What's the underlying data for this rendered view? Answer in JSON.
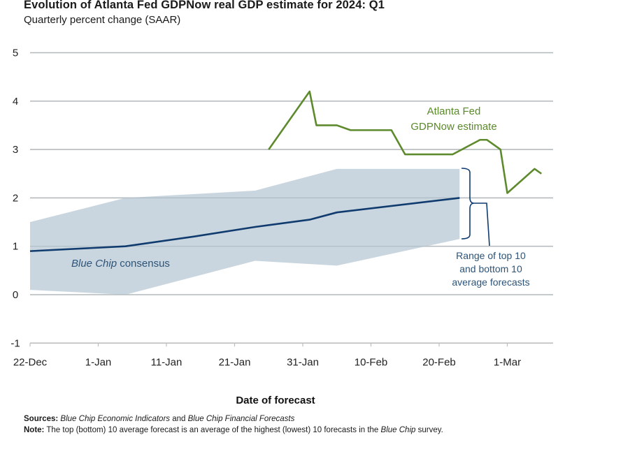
{
  "chart_data": {
    "type": "line",
    "title": "Evolution of Atlanta Fed GDPNow real GDP estimate for 2024: Q1",
    "subtitle": "Quarterly percent change (SAAR)",
    "xlabel": "Date of forecast",
    "ylabel": "",
    "ylim": [
      -1,
      5
    ],
    "yticks": [
      5,
      4,
      3,
      2,
      1,
      0,
      -1
    ],
    "x_unit": "days since 22-Dec-2023",
    "xlim": [
      0,
      76
    ],
    "xticks": [
      {
        "day": 0,
        "label": "22-Dec"
      },
      {
        "day": 10,
        "label": "1-Jan"
      },
      {
        "day": 20,
        "label": "11-Jan"
      },
      {
        "day": 30,
        "label": "21-Jan"
      },
      {
        "day": 40,
        "label": "31-Jan"
      },
      {
        "day": 50,
        "label": "10-Feb"
      },
      {
        "day": 60,
        "label": "20-Feb"
      },
      {
        "day": 70,
        "label": "1-Mar"
      }
    ],
    "grid": true,
    "series": [
      {
        "name": "Atlanta Fed GDPNow estimate",
        "color": "#5e8a2e",
        "x": [
          35,
          38,
          41,
          42,
          45,
          47,
          53,
          55,
          62,
          66,
          67,
          69,
          70,
          74,
          75
        ],
        "values": [
          3.0,
          3.6,
          4.2,
          3.5,
          3.5,
          3.4,
          3.4,
          2.9,
          2.9,
          3.2,
          3.2,
          3.0,
          2.1,
          2.6,
          2.5
        ]
      },
      {
        "name": "Blue Chip consensus",
        "color": "#0f3b6e",
        "x": [
          0,
          14,
          24,
          33,
          41,
          45,
          63
        ],
        "values": [
          0.9,
          1.0,
          1.2,
          1.4,
          1.55,
          1.7,
          2.0
        ]
      },
      {
        "name": "Range of top 10 and bottom 10 average forecasts",
        "type": "area-band",
        "color": "#c6d3dc",
        "x": [
          0,
          14,
          33,
          45,
          63
        ],
        "upper": [
          1.5,
          2.0,
          2.15,
          2.6,
          2.6
        ],
        "lower": [
          0.1,
          0.0,
          0.7,
          0.6,
          1.15
        ]
      }
    ],
    "annotations": {
      "gdpnow_label": [
        "Atlanta Fed",
        "GDPNow estimate"
      ],
      "consensus_label_italic": "Blue Chip",
      "consensus_label_rest": " consensus",
      "range_label": [
        "Range of top 10",
        "and bottom 10",
        "average forecasts"
      ]
    },
    "legend": "none (inline annotations)"
  },
  "footer": {
    "sources_label": "Sources:",
    "sources_italic_1": "Blue Chip Economic Indicators",
    "sources_and": " and ",
    "sources_italic_2": "Blue Chip Financial Forecasts",
    "note_label": "Note:",
    "note_text": " The top (bottom) 10 average forecast is an average of the highest (lowest) 10 forecasts in the ",
    "note_italic": "Blue Chip",
    "note_end": " survey."
  }
}
